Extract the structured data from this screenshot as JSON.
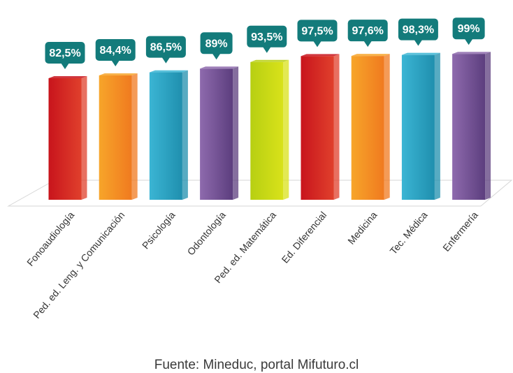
{
  "chart_data": {
    "type": "bar",
    "categories": [
      "Fonoaudiología",
      "Ped. ed. Leng. y Comunicación",
      "Psicología",
      "Odontología",
      "Ped. ed. Matemática",
      "Ed. Diferencial",
      "Medicina",
      "Tec. Médica",
      "Enfermería"
    ],
    "values": [
      82.5,
      84.4,
      86.5,
      89,
      93.5,
      97.5,
      97.6,
      98.3,
      99
    ],
    "value_labels": [
      "82,5%",
      "84,4%",
      "86,5%",
      "89%",
      "93,5%",
      "97,5%",
      "97,6%",
      "98,3%",
      "99%"
    ],
    "unit": "%",
    "title": "",
    "xlabel": "",
    "ylabel": "",
    "grid": false,
    "legend": "none",
    "colors": {
      "bar_gradients": [
        [
          "#c8141c",
          "#e0402c"
        ],
        [
          "#f7a52a",
          "#f07a1f"
        ],
        [
          "#3bb5d4",
          "#1f8fae"
        ],
        [
          "#8e6aad",
          "#5c3e7e"
        ],
        [
          "#b7cf12",
          "#d9e21a"
        ],
        [
          "#c8141c",
          "#e0402c"
        ],
        [
          "#f7a52a",
          "#f07a1f"
        ],
        [
          "#3bb5d4",
          "#1f8fae"
        ],
        [
          "#8e6aad",
          "#5c3e7e"
        ]
      ],
      "label_bg": "#137b7b",
      "label_text": "#ffffff"
    }
  },
  "source": "Fuente: Mineduc, portal Mifuturo.cl"
}
